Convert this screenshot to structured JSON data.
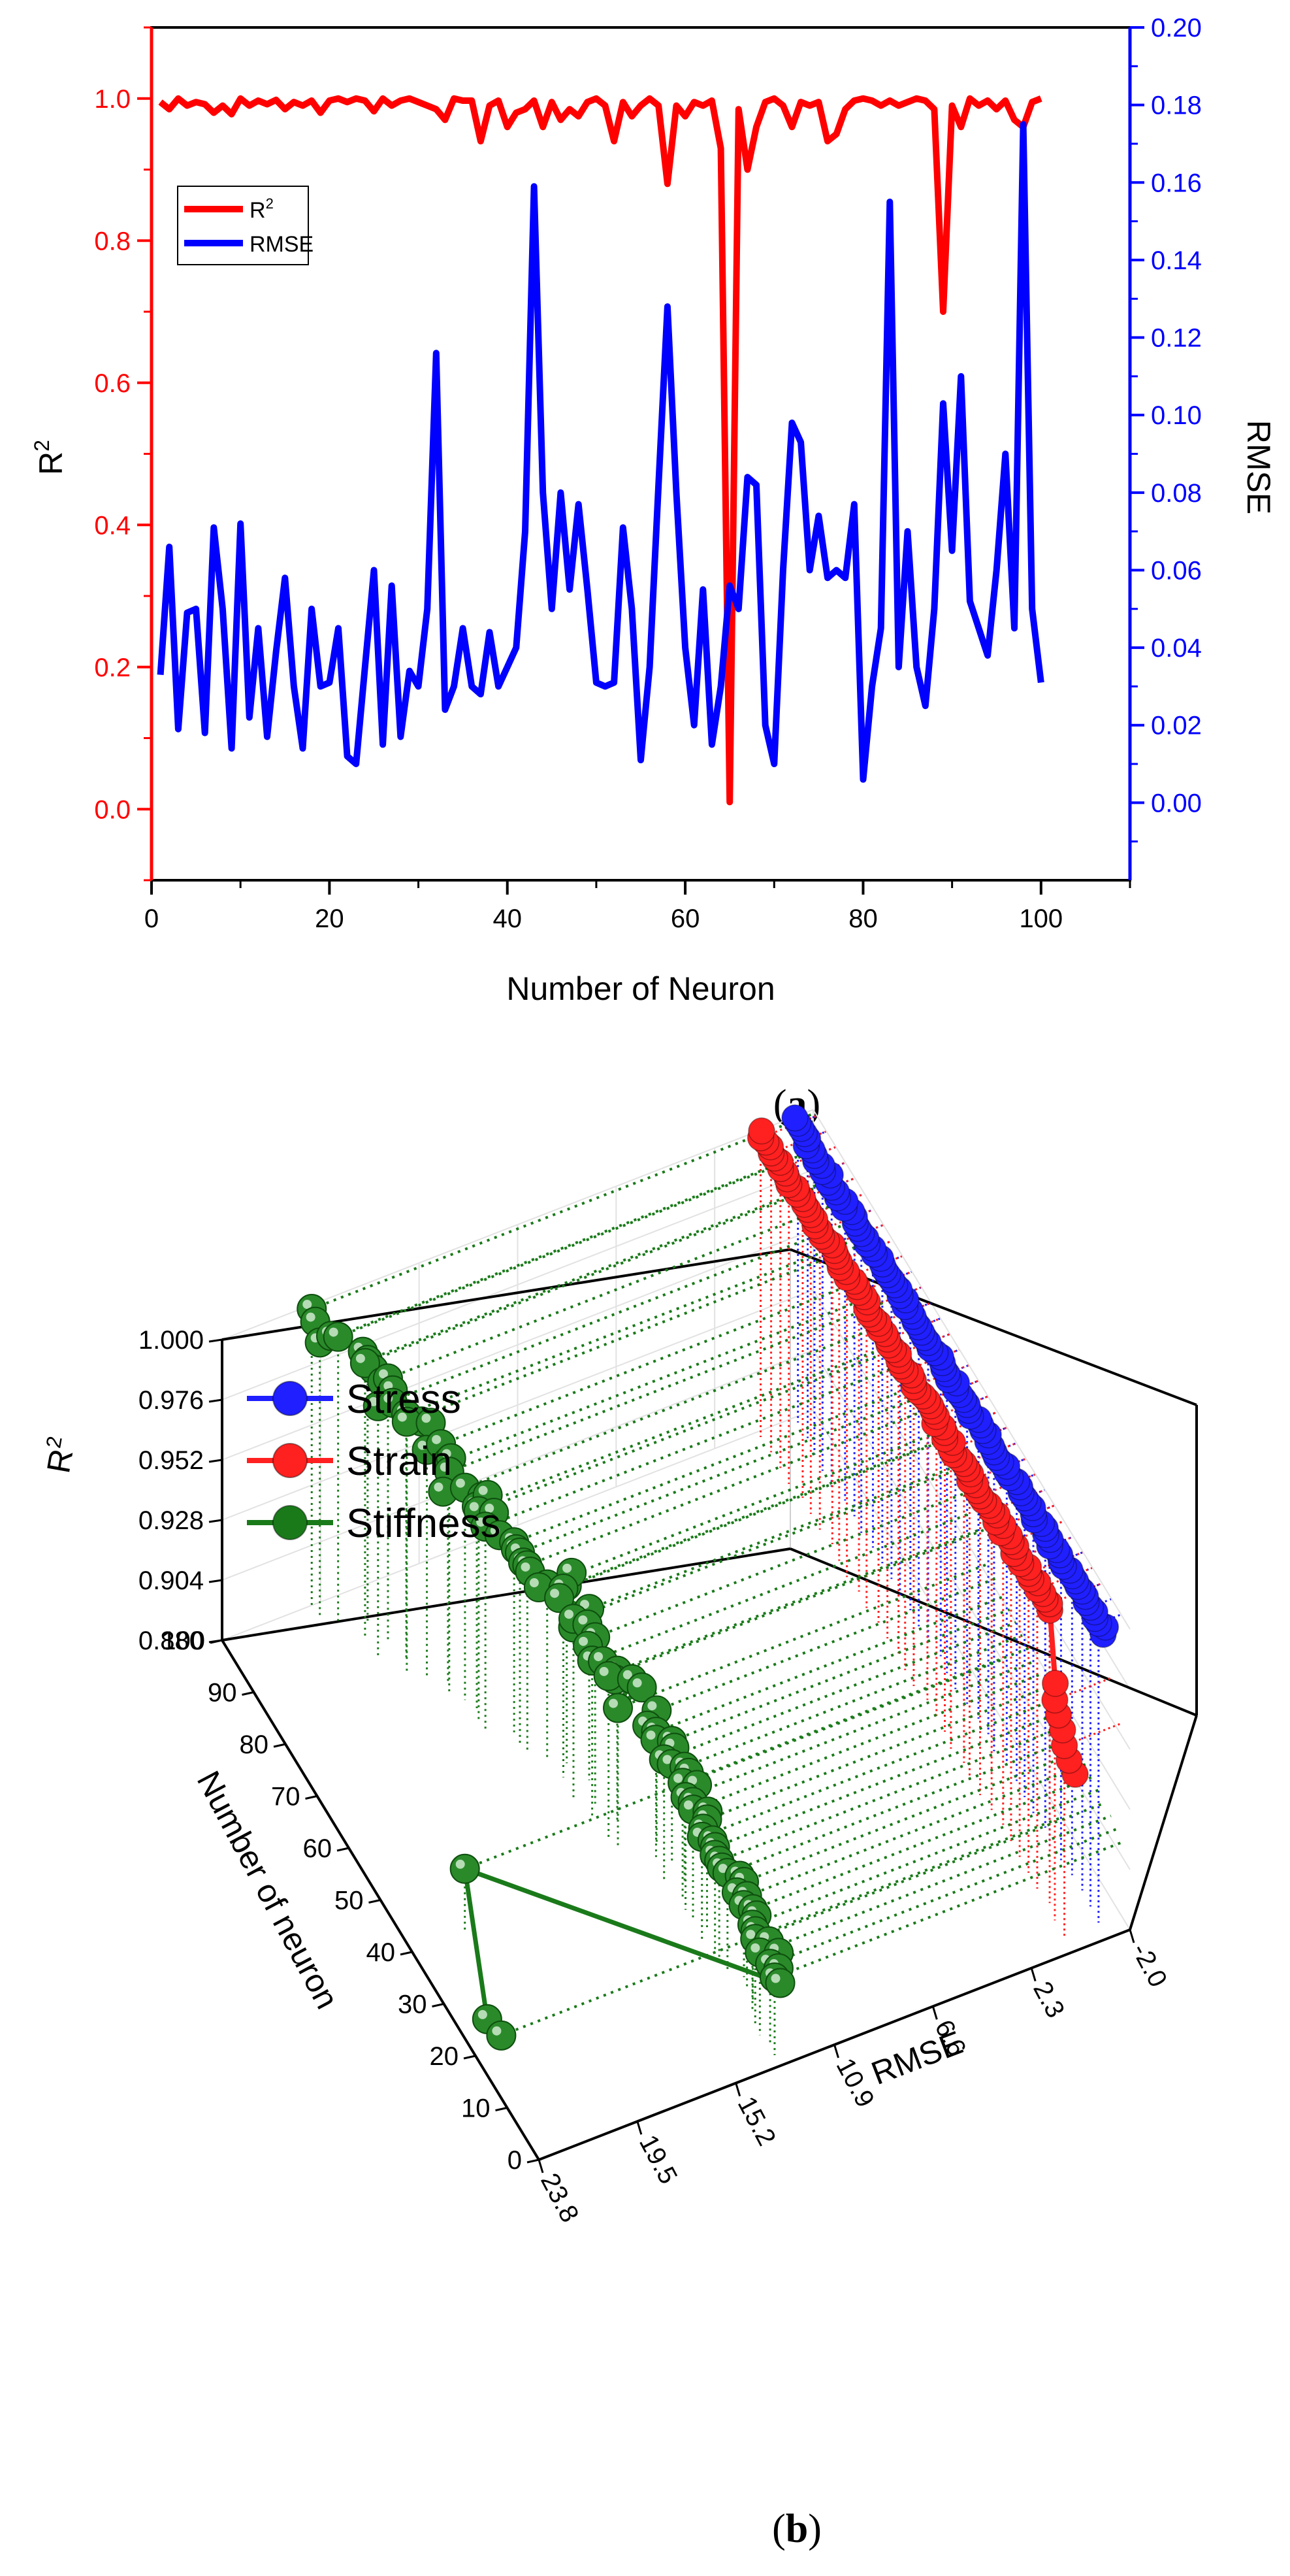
{
  "panel_a": {
    "caption_letter": "a",
    "chart_data": {
      "type": "line",
      "xlabel": "Number of Neuron",
      "ylabel_left": "R",
      "ylabel_left_sup": "2",
      "ylabel_right": "RMSE",
      "xlim": [
        0,
        110
      ],
      "ylim_left": [
        -0.1,
        1.1
      ],
      "ylim_right": [
        -0.02,
        0.2
      ],
      "x_ticks": [
        "0",
        "20",
        "40",
        "60",
        "80",
        "100"
      ],
      "y_left_ticks": [
        "0.0",
        "0.2",
        "0.4",
        "0.6",
        "0.8",
        "1.0"
      ],
      "y_right_ticks": [
        "0.00",
        "0.02",
        "0.04",
        "0.06",
        "0.08",
        "0.10",
        "0.12",
        "0.14",
        "0.16",
        "0.18",
        "0.20"
      ],
      "legend": {
        "placement": "upper-left"
      },
      "left_axis_color": "#ff0000",
      "right_axis_color": "#0000ff",
      "x": [
        1,
        2,
        3,
        4,
        5,
        6,
        7,
        8,
        9,
        10,
        11,
        12,
        13,
        14,
        15,
        16,
        17,
        18,
        19,
        20,
        21,
        22,
        23,
        24,
        25,
        26,
        27,
        28,
        29,
        30,
        31,
        32,
        33,
        34,
        35,
        36,
        37,
        38,
        39,
        40,
        41,
        42,
        43,
        44,
        45,
        46,
        47,
        48,
        49,
        50,
        51,
        52,
        53,
        54,
        55,
        56,
        57,
        58,
        59,
        60,
        61,
        62,
        63,
        64,
        65,
        66,
        67,
        68,
        69,
        70,
        71,
        72,
        73,
        74,
        75,
        76,
        77,
        78,
        79,
        80,
        81,
        82,
        83,
        84,
        85,
        86,
        87,
        88,
        89,
        90,
        91,
        92,
        93,
        94,
        95,
        96,
        97,
        98,
        99,
        100
      ],
      "series": [
        {
          "name": "R",
          "name_sup": "2",
          "axis": "left",
          "color": "#ff0000",
          "values": [
            0.995,
            0.985,
            1.0,
            0.99,
            0.995,
            0.992,
            0.98,
            0.99,
            0.978,
            1.0,
            0.99,
            0.997,
            0.992,
            0.998,
            0.985,
            0.995,
            0.99,
            0.997,
            0.98,
            0.997,
            1.0,
            0.995,
            1.0,
            0.997,
            0.982,
            1.0,
            0.99,
            0.997,
            1.0,
            0.995,
            0.99,
            0.985,
            0.97,
            1.0,
            0.997,
            0.997,
            0.94,
            0.99,
            0.997,
            0.96,
            0.98,
            0.985,
            0.997,
            0.96,
            0.995,
            0.97,
            0.985,
            0.975,
            0.995,
            1.0,
            0.99,
            0.94,
            0.995,
            0.975,
            0.99,
            1.0,
            0.99,
            0.88,
            0.99,
            0.975,
            0.995,
            0.99,
            0.997,
            0.93,
            0.01,
            0.985,
            0.9,
            0.96,
            0.995,
            1.0,
            0.99,
            0.96,
            0.995,
            0.99,
            0.995,
            0.94,
            0.95,
            0.985,
            0.997,
            1.0,
            0.997,
            0.99,
            0.997,
            0.99,
            0.995,
            1.0,
            0.997,
            0.985,
            0.7,
            0.99,
            0.96,
            1.0,
            0.99,
            0.997,
            0.985,
            0.997,
            0.97,
            0.96,
            0.995,
            1.0
          ]
        },
        {
          "name": "RMSE",
          "axis": "right",
          "color": "#0000ff",
          "values": [
            0.033,
            0.066,
            0.019,
            0.049,
            0.05,
            0.018,
            0.071,
            0.05,
            0.014,
            0.072,
            0.022,
            0.045,
            0.017,
            0.039,
            0.058,
            0.03,
            0.014,
            0.05,
            0.03,
            0.031,
            0.045,
            0.012,
            0.01,
            0.035,
            0.06,
            0.015,
            0.056,
            0.017,
            0.034,
            0.03,
            0.05,
            0.116,
            0.024,
            0.03,
            0.045,
            0.03,
            0.028,
            0.044,
            0.03,
            0.035,
            0.04,
            0.07,
            0.159,
            0.08,
            0.05,
            0.08,
            0.055,
            0.077,
            0.055,
            0.031,
            0.03,
            0.031,
            0.071,
            0.05,
            0.011,
            0.035,
            0.082,
            0.128,
            0.08,
            0.04,
            0.02,
            0.055,
            0.015,
            0.03,
            0.056,
            0.05,
            0.084,
            0.082,
            0.02,
            0.01,
            0.06,
            0.098,
            0.093,
            0.06,
            0.074,
            0.058,
            0.06,
            0.058,
            0.077,
            0.006,
            0.03,
            0.045,
            0.155,
            0.035,
            0.07,
            0.035,
            0.025,
            0.05,
            0.103,
            0.065,
            0.11,
            0.052,
            0.045,
            0.038,
            0.06,
            0.09,
            0.045,
            0.175,
            0.05,
            0.031
          ]
        }
      ]
    }
  },
  "panel_b": {
    "caption_letter": "b",
    "chart_data": {
      "type": "scatter",
      "projection": "3d",
      "xlabel": "RMSE",
      "ylabel": "Number of neuron",
      "zlabel": "R",
      "zlabel_sup": "2",
      "x_ticks": [
        "23.8",
        "19.5",
        "15.2",
        "10.9",
        "6.6",
        "2.3",
        "-2.0"
      ],
      "y_ticks": [
        "0",
        "10",
        "20",
        "30",
        "40",
        "50",
        "60",
        "70",
        "80",
        "90",
        "100"
      ],
      "z_ticks": [
        "0.880",
        "0.904",
        "0.928",
        "0.952",
        "0.976",
        "1.000"
      ],
      "xlim": [
        23.8,
        -2.0
      ],
      "ylim": [
        0,
        100
      ],
      "zlim": [
        0.88,
        1.0
      ],
      "legend": {
        "placement": "top-left"
      },
      "series": [
        {
          "name": "Stress",
          "color": "#1f1fff"
        },
        {
          "name": "Strain",
          "color": "#ff2020"
        },
        {
          "name": "Stiffness",
          "color": "#1a7a1a"
        }
      ]
    }
  }
}
